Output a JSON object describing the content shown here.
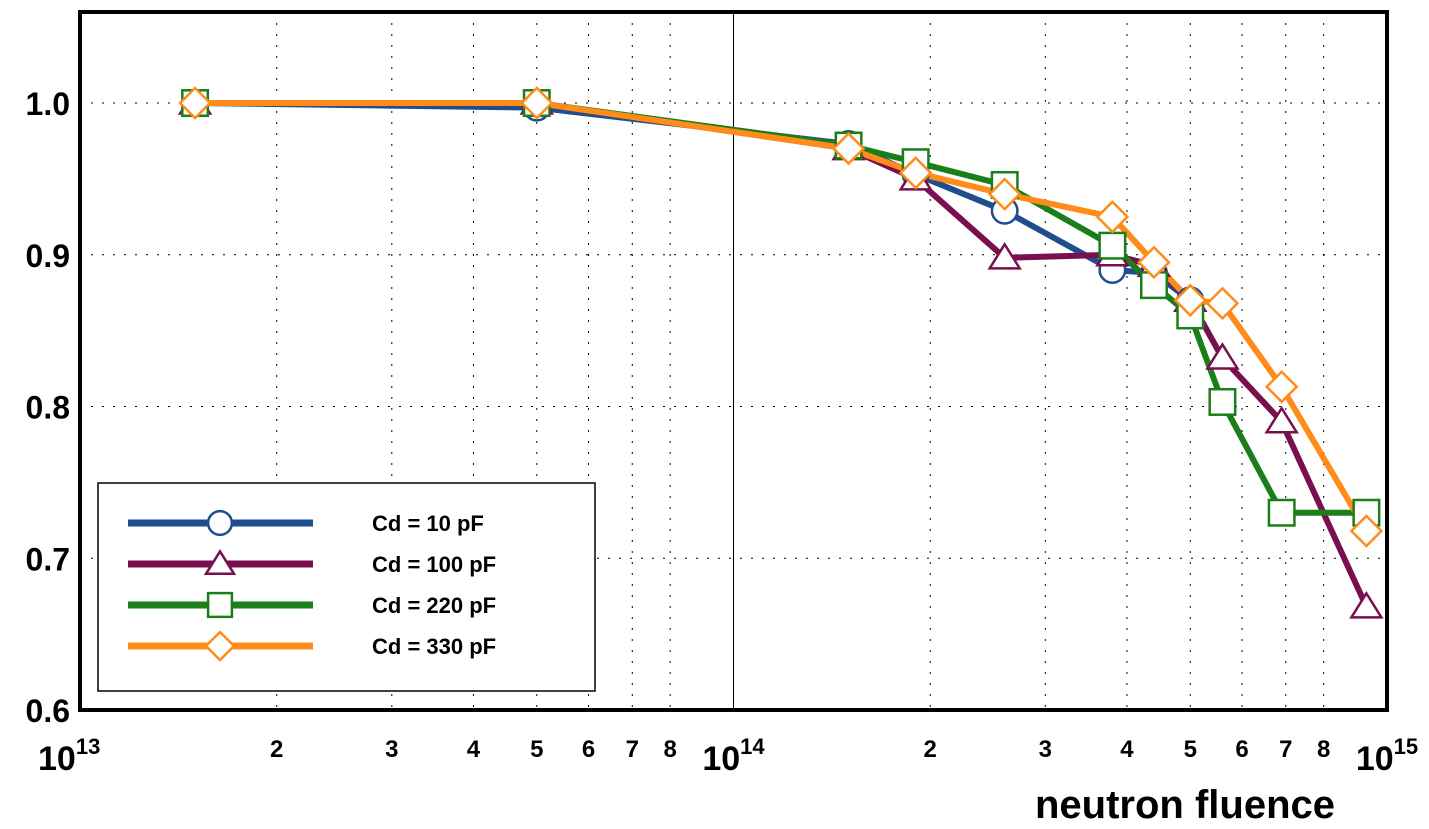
{
  "chart_data": {
    "type": "line",
    "title": "",
    "xlabel": "neutron fluence",
    "ylabel": "",
    "x_scale": "log",
    "xlim": [
      10000000000000.0,
      1000000000000000.0
    ],
    "ylim": [
      0.6,
      1.06
    ],
    "grid": true,
    "legend_position": "bottom-left",
    "y_ticks": [
      {
        "value": 0.6,
        "label": "0.6"
      },
      {
        "value": 0.7,
        "label": "0.7"
      },
      {
        "value": 0.8,
        "label": "0.8"
      },
      {
        "value": 0.9,
        "label": "0.9"
      },
      {
        "value": 1.0,
        "label": "1.0"
      }
    ],
    "x_major_ticks": [
      {
        "value": 10000000000000.0,
        "base": "10",
        "exp": "13"
      },
      {
        "value": 100000000000000.0,
        "base": "10",
        "exp": "14"
      },
      {
        "value": 1000000000000000.0,
        "base": "10",
        "exp": "15"
      }
    ],
    "x_minor_ticks": [
      {
        "value": 20000000000000.0,
        "label": "2"
      },
      {
        "value": 30000000000000.0,
        "label": "3"
      },
      {
        "value": 40000000000000.0,
        "label": "4"
      },
      {
        "value": 50000000000000.0,
        "label": "5"
      },
      {
        "value": 60000000000000.0,
        "label": "6"
      },
      {
        "value": 70000000000000.0,
        "label": "7"
      },
      {
        "value": 80000000000000.0,
        "label": "8"
      },
      {
        "value": 200000000000000.0,
        "label": "2"
      },
      {
        "value": 300000000000000.0,
        "label": "3"
      },
      {
        "value": 400000000000000.0,
        "label": "4"
      },
      {
        "value": 500000000000000.0,
        "label": "5"
      },
      {
        "value": 600000000000000.0,
        "label": "6"
      },
      {
        "value": 700000000000000.0,
        "label": "7"
      },
      {
        "value": 800000000000000.0,
        "label": "8"
      }
    ],
    "series": [
      {
        "name": "Cd = 10 pF",
        "color": "#1f4e8c",
        "marker": "circle",
        "x": [
          15000000000000.0,
          50000000000000.0,
          150000000000000.0,
          190000000000000.0,
          260000000000000.0,
          380000000000000.0,
          440000000000000.0,
          500000000000000.0
        ],
        "y": [
          1.0,
          0.997,
          0.973,
          0.953,
          0.929,
          0.89,
          0.888,
          0.87
        ]
      },
      {
        "name": "Cd = 100 pF",
        "color": "#7a0f4f",
        "marker": "triangle",
        "x": [
          15000000000000.0,
          50000000000000.0,
          150000000000000.0,
          190000000000000.0,
          260000000000000.0,
          380000000000000.0,
          440000000000000.0,
          500000000000000.0,
          560000000000000.0,
          690000000000000.0,
          930000000000000.0
        ],
        "y": [
          1.0,
          1.0,
          0.97,
          0.95,
          0.898,
          0.9,
          0.893,
          0.87,
          0.832,
          0.79,
          0.668
        ]
      },
      {
        "name": "Cd = 220 pF",
        "color": "#1a7f1a",
        "marker": "square",
        "x": [
          15000000000000.0,
          50000000000000.0,
          150000000000000.0,
          190000000000000.0,
          260000000000000.0,
          380000000000000.0,
          440000000000000.0,
          500000000000000.0,
          560000000000000.0,
          690000000000000.0,
          930000000000000.0
        ],
        "y": [
          1.0,
          1.0,
          0.972,
          0.961,
          0.946,
          0.906,
          0.88,
          0.86,
          0.803,
          0.73,
          0.73
        ]
      },
      {
        "name": "Cd = 330 pF",
        "color": "#ff8c1a",
        "marker": "diamond",
        "x": [
          15000000000000.0,
          50000000000000.0,
          150000000000000.0,
          190000000000000.0,
          260000000000000.0,
          380000000000000.0,
          440000000000000.0,
          500000000000000.0,
          560000000000000.0,
          690000000000000.0,
          930000000000000.0
        ],
        "y": [
          1.0,
          1.0,
          0.97,
          0.954,
          0.94,
          0.925,
          0.895,
          0.87,
          0.868,
          0.813,
          0.718
        ]
      }
    ]
  }
}
